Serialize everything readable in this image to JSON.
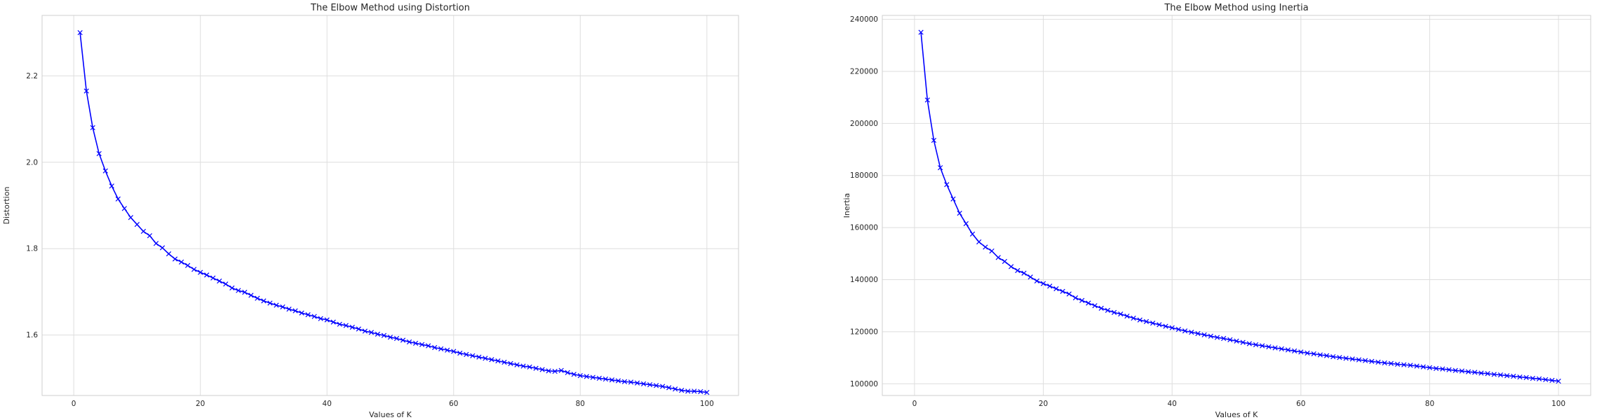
{
  "chart_data": [
    {
      "type": "line",
      "title": "The Elbow Method using Distortion",
      "xlabel": "Values of K",
      "ylabel": "Distortion",
      "xlim": [
        -5,
        105
      ],
      "ylim": [
        1.46,
        2.34
      ],
      "xticks": [
        0,
        20,
        40,
        60,
        80,
        100
      ],
      "yticks": [
        1.6,
        1.8,
        2.0,
        2.2
      ],
      "ytick_labels": [
        "1.6",
        "1.8",
        "2.0",
        "2.2"
      ],
      "grid": true,
      "marker": "x",
      "color": "#0000ff",
      "x": [
        1,
        2,
        3,
        4,
        5,
        6,
        7,
        8,
        9,
        10,
        11,
        12,
        13,
        14,
        15,
        16,
        17,
        18,
        19,
        20,
        21,
        22,
        23,
        24,
        25,
        26,
        27,
        28,
        29,
        30,
        31,
        32,
        33,
        34,
        35,
        36,
        37,
        38,
        39,
        40,
        41,
        42,
        43,
        44,
        45,
        46,
        47,
        48,
        49,
        50,
        51,
        52,
        53,
        54,
        55,
        56,
        57,
        58,
        59,
        60,
        61,
        62,
        63,
        64,
        65,
        66,
        67,
        68,
        69,
        70,
        71,
        72,
        73,
        74,
        75,
        76,
        77,
        78,
        79,
        80,
        81,
        82,
        83,
        84,
        85,
        86,
        87,
        88,
        89,
        90,
        91,
        92,
        93,
        94,
        95,
        96,
        97,
        98,
        99,
        100
      ],
      "y": [
        2.3,
        2.165,
        2.08,
        2.02,
        1.98,
        1.945,
        1.915,
        1.893,
        1.872,
        1.856,
        1.84,
        1.83,
        1.812,
        1.802,
        1.788,
        1.776,
        1.769,
        1.761,
        1.752,
        1.745,
        1.739,
        1.732,
        1.725,
        1.718,
        1.709,
        1.703,
        1.699,
        1.692,
        1.685,
        1.679,
        1.674,
        1.669,
        1.665,
        1.66,
        1.656,
        1.651,
        1.647,
        1.643,
        1.638,
        1.635,
        1.63,
        1.625,
        1.622,
        1.618,
        1.614,
        1.609,
        1.606,
        1.602,
        1.599,
        1.595,
        1.592,
        1.588,
        1.584,
        1.581,
        1.578,
        1.575,
        1.571,
        1.568,
        1.565,
        1.562,
        1.558,
        1.555,
        1.552,
        1.549,
        1.546,
        1.543,
        1.54,
        1.537,
        1.534,
        1.531,
        1.528,
        1.526,
        1.523,
        1.52,
        1.517,
        1.516,
        1.518,
        1.513,
        1.509,
        1.506,
        1.504,
        1.502,
        1.5,
        1.498,
        1.496,
        1.494,
        1.492,
        1.491,
        1.489,
        1.487,
        1.485,
        1.483,
        1.481,
        1.478,
        1.475,
        1.472,
        1.47,
        1.47,
        1.469,
        1.467
      ]
    },
    {
      "type": "line",
      "title": "The Elbow Method using Inertia",
      "xlabel": "Values of K",
      "ylabel": "Inertia",
      "xlim": [
        -5,
        105
      ],
      "ylim": [
        95500,
        241500
      ],
      "xticks": [
        0,
        20,
        40,
        60,
        80,
        100
      ],
      "yticks": [
        100000,
        120000,
        140000,
        160000,
        180000,
        200000,
        220000,
        240000
      ],
      "ytick_labels": [
        "100000",
        "120000",
        "140000",
        "160000",
        "180000",
        "200000",
        "220000",
        "240000"
      ],
      "grid": true,
      "marker": "x",
      "color": "#0000ff",
      "x": [
        1,
        2,
        3,
        4,
        5,
        6,
        7,
        8,
        9,
        10,
        11,
        12,
        13,
        14,
        15,
        16,
        17,
        18,
        19,
        20,
        21,
        22,
        23,
        24,
        25,
        26,
        27,
        28,
        29,
        30,
        31,
        32,
        33,
        34,
        35,
        36,
        37,
        38,
        39,
        40,
        41,
        42,
        43,
        44,
        45,
        46,
        47,
        48,
        49,
        50,
        51,
        52,
        53,
        54,
        55,
        56,
        57,
        58,
        59,
        60,
        61,
        62,
        63,
        64,
        65,
        66,
        67,
        68,
        69,
        70,
        71,
        72,
        73,
        74,
        75,
        76,
        77,
        78,
        79,
        80,
        81,
        82,
        83,
        84,
        85,
        86,
        87,
        88,
        89,
        90,
        91,
        92,
        93,
        94,
        95,
        96,
        97,
        98,
        99,
        100
      ],
      "y": [
        235000,
        209000,
        193500,
        183000,
        176500,
        171000,
        165500,
        161500,
        157500,
        154500,
        152500,
        151000,
        148500,
        147000,
        145000,
        143500,
        142500,
        141000,
        139500,
        138500,
        137500,
        136500,
        135500,
        134500,
        133000,
        132000,
        131000,
        130000,
        129000,
        128200,
        127400,
        126800,
        126000,
        125200,
        124500,
        123900,
        123300,
        122700,
        122100,
        121500,
        120900,
        120300,
        119800,
        119300,
        118800,
        118300,
        117800,
        117400,
        116900,
        116400,
        115900,
        115400,
        115000,
        114600,
        114200,
        113800,
        113400,
        113000,
        112600,
        112200,
        111800,
        111500,
        111100,
        110800,
        110400,
        110100,
        109800,
        109500,
        109200,
        108900,
        108600,
        108300,
        108000,
        107800,
        107500,
        107300,
        107100,
        106800,
        106500,
        106200,
        105900,
        105700,
        105400,
        105100,
        104900,
        104600,
        104400,
        104100,
        103900,
        103600,
        103400,
        103100,
        102900,
        102600,
        102400,
        102100,
        101900,
        101600,
        101300,
        101000
      ]
    }
  ]
}
